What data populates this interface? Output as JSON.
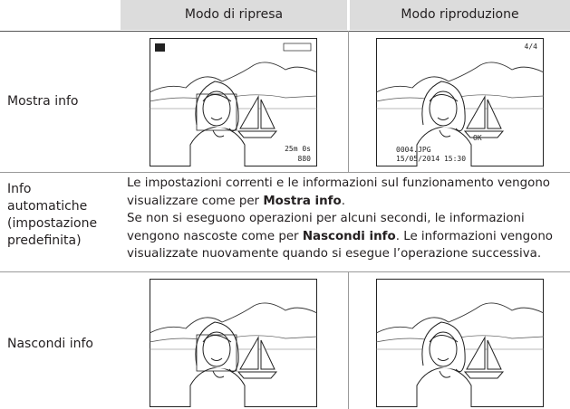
{
  "table": {
    "header": [
      "Modo di ripresa",
      "Modo riproduzione"
    ],
    "rows": [
      {
        "label": "Mostra info",
        "shooting": {
          "time": "25m 0s",
          "count": "880"
        },
        "playback": {
          "frame": "4/4",
          "file": "0004.JPG",
          "date": "15/05/2014 15:30",
          "ok": "OK"
        }
      },
      {
        "label": "Info automatiche (impostazione predefinita)",
        "paragraphs": [
          [
            "Le impostazioni correnti e le informazioni sul funzionamento vengono visualizzare come per ",
            "Mostra info",
            "."
          ],
          [
            "Se non si eseguono operazioni per alcuni secondi, le informazioni vengono nascoste come per ",
            "Nascondi info",
            ". Le informazioni vengono visualizzate nuovamente quando si esegue l’operazione successiva."
          ]
        ]
      },
      {
        "label": "Nascondi info"
      }
    ]
  }
}
